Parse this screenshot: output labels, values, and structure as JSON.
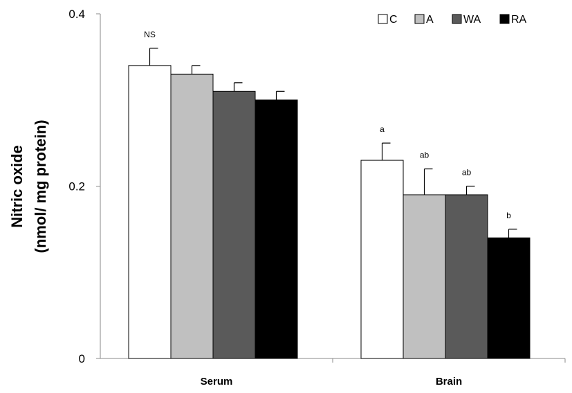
{
  "chart_data": {
    "type": "bar",
    "categories": [
      "Serum",
      "Brain"
    ],
    "ylabel_line1": "Nitric oxide",
    "ylabel_line2": "(nmol/ mg protein)",
    "ylim": [
      0,
      0.4
    ],
    "yticks": [
      {
        "value": 0,
        "label": "0"
      },
      {
        "value": 0.2,
        "label": "0.2"
      },
      {
        "value": 0.4,
        "label": "0.4"
      }
    ],
    "legend_position": "top-right",
    "series": [
      {
        "name": "C",
        "color": "#ffffff",
        "values": [
          0.34,
          0.23
        ],
        "errors": [
          0.02,
          0.02
        ],
        "annotations": [
          "NS",
          "a"
        ]
      },
      {
        "name": "A",
        "color": "#c0c0c0",
        "values": [
          0.33,
          0.19
        ],
        "errors": [
          0.01,
          0.03
        ],
        "annotations": [
          "",
          "ab"
        ]
      },
      {
        "name": "WA",
        "color": "#5a5a5a",
        "values": [
          0.31,
          0.19
        ],
        "errors": [
          0.01,
          0.01
        ],
        "annotations": [
          "",
          "ab"
        ]
      },
      {
        "name": "RA",
        "color": "#000000",
        "values": [
          0.3,
          0.14
        ],
        "errors": [
          0.01,
          0.01
        ],
        "annotations": [
          "",
          "b"
        ]
      }
    ]
  }
}
